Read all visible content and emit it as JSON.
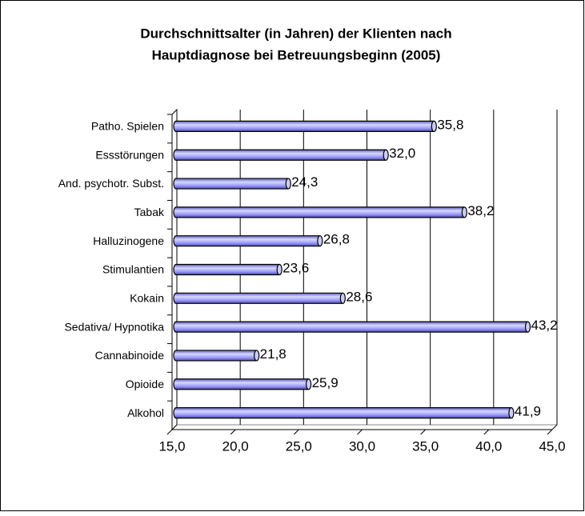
{
  "chart_data": {
    "type": "barh",
    "title": [
      "Durchschnittsalter (in Jahren) der Klienten nach",
      "Hauptdiagnose bei Betreuungsbeginn (2005)"
    ],
    "categories": [
      "Patho. Spielen",
      "Essstörungen",
      "And. psychotr. Subst.",
      "Tabak",
      "Halluzinogene",
      "Stimulantien",
      "Kokain",
      "Sedativa/ Hypnotika",
      "Cannabinoide",
      "Opioide",
      "Alkohol"
    ],
    "values": [
      35.8,
      32.0,
      24.3,
      38.2,
      26.8,
      23.6,
      28.6,
      43.2,
      21.8,
      25.9,
      41.9
    ],
    "value_labels": [
      "35,8",
      "32,0",
      "24,3",
      "38,2",
      "26,8",
      "23,6",
      "28,6",
      "43,2",
      "21,8",
      "25,9",
      "41,9"
    ],
    "color": "#9999ff",
    "xlim": [
      15,
      45
    ],
    "xticks": [
      {
        "value": 15,
        "label": "15,0"
      },
      {
        "value": 20,
        "label": "20,0"
      },
      {
        "value": 25,
        "label": "25,0"
      },
      {
        "value": 30,
        "label": "30,0"
      },
      {
        "value": 35,
        "label": "35,0"
      },
      {
        "value": 40,
        "label": "40,0"
      },
      {
        "value": 45,
        "label": "45,0"
      }
    ],
    "grid": true
  }
}
